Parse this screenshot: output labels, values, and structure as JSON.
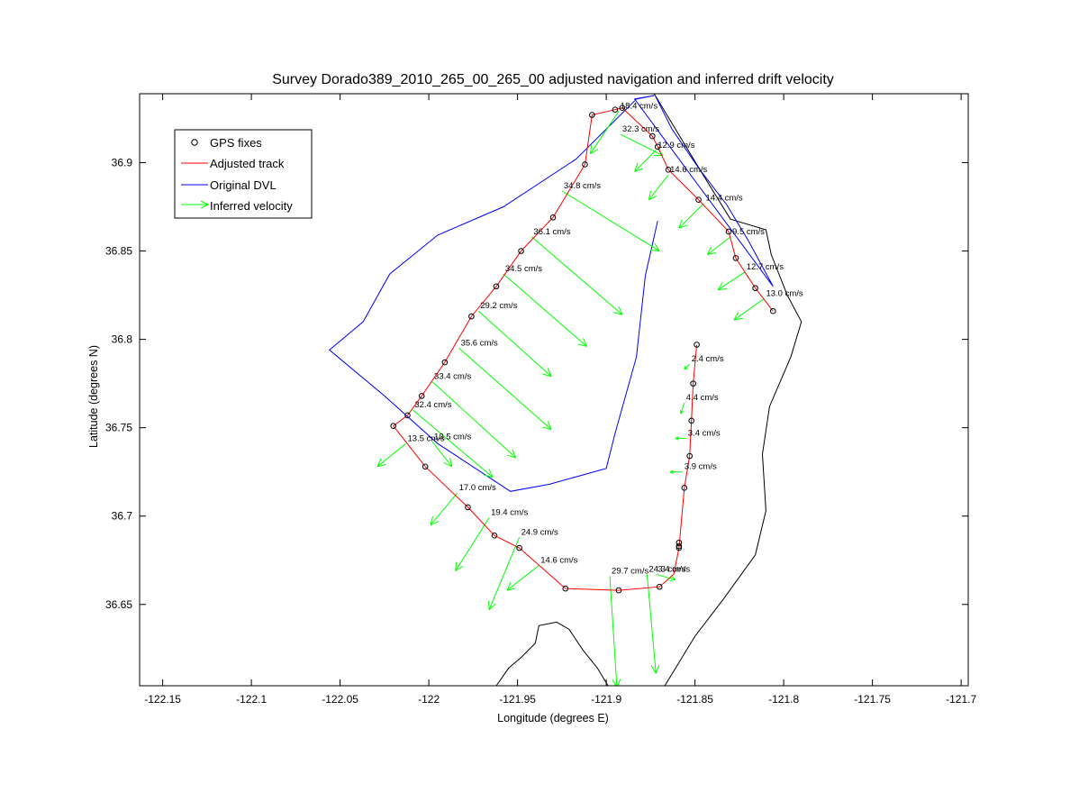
{
  "chart_data": {
    "type": "line",
    "title": "Survey Dorado389_2010_265_00_265_00 adjusted navigation and inferred drift velocity",
    "xlabel": "Longitude (degrees E)",
    "ylabel": "Latitude (degrees N)",
    "xlim": [
      -122.163,
      -121.696
    ],
    "ylim": [
      36.604,
      36.939
    ],
    "grid": false,
    "legend_position": "top-left",
    "x_ticks": [
      "-122.15",
      "-122.1",
      "-122.05",
      "-122",
      "-121.95",
      "-121.9",
      "-121.85",
      "-121.8",
      "-121.75",
      "-121.7"
    ],
    "x_tick_values": [
      -122.15,
      -122.1,
      -122.05,
      -122.0,
      -121.95,
      -121.9,
      -121.85,
      -121.8,
      -121.75,
      -121.7
    ],
    "y_ticks": [
      "36.65",
      "36.7",
      "36.75",
      "36.8",
      "36.85",
      "36.9"
    ],
    "y_tick_values": [
      36.65,
      36.7,
      36.75,
      36.8,
      36.85,
      36.9
    ],
    "legend": [
      {
        "label": "GPS fixes",
        "color": "#000000",
        "marker": "circle"
      },
      {
        "label": "Adjusted track",
        "color": "#ff0000",
        "marker": "line"
      },
      {
        "label": "Original DVL",
        "color": "#0000ff",
        "marker": "line"
      },
      {
        "label": "Inferred velocity",
        "color": "#00ff00",
        "marker": "arrow"
      }
    ],
    "colors": {
      "gps": "#000000",
      "adjusted": "#ff0000",
      "dvl": "#0000ff",
      "velocity": "#00ff00",
      "coast": "#000000"
    },
    "series": [
      {
        "name": "GPS fixes",
        "points": [
          [
            -121.895,
            36.93
          ],
          [
            -121.891,
            36.931
          ],
          [
            -121.908,
            36.927
          ],
          [
            -121.874,
            36.915
          ],
          [
            -121.871,
            36.909
          ],
          [
            -121.865,
            36.896
          ],
          [
            -121.848,
            36.879
          ],
          [
            -121.831,
            36.861
          ],
          [
            -121.827,
            36.846
          ],
          [
            -121.816,
            36.829
          ],
          [
            -121.806,
            36.816
          ],
          [
            -121.912,
            36.899
          ],
          [
            -121.93,
            36.869
          ],
          [
            -121.948,
            36.85
          ],
          [
            -121.962,
            36.83
          ],
          [
            -121.976,
            36.813
          ],
          [
            -121.991,
            36.787
          ],
          [
            -122.004,
            36.768
          ],
          [
            -122.012,
            36.757
          ],
          [
            -122.02,
            36.751
          ],
          [
            -122.002,
            36.728
          ],
          [
            -121.978,
            36.705
          ],
          [
            -121.963,
            36.689
          ],
          [
            -121.949,
            36.682
          ],
          [
            -121.923,
            36.659
          ],
          [
            -121.893,
            36.658
          ],
          [
            -121.87,
            36.66
          ],
          [
            -121.859,
            36.682
          ],
          [
            -121.859,
            36.683
          ],
          [
            -121.859,
            36.685
          ],
          [
            -121.856,
            36.716
          ],
          [
            -121.853,
            36.734
          ],
          [
            -121.852,
            36.754
          ],
          [
            -121.851,
            36.775
          ],
          [
            -121.849,
            36.797
          ]
        ]
      },
      {
        "name": "Adjusted track",
        "points": [
          [
            -121.806,
            36.816
          ],
          [
            -121.816,
            36.829
          ],
          [
            -121.827,
            36.846
          ],
          [
            -121.831,
            36.861
          ],
          [
            -121.848,
            36.879
          ],
          [
            -121.865,
            36.896
          ],
          [
            -121.871,
            36.909
          ],
          [
            -121.874,
            36.915
          ],
          [
            -121.891,
            36.931
          ],
          [
            -121.895,
            36.93
          ],
          [
            -121.908,
            36.927
          ],
          [
            -121.912,
            36.899
          ],
          [
            -121.93,
            36.869
          ],
          [
            -121.948,
            36.85
          ],
          [
            -121.962,
            36.83
          ],
          [
            -121.976,
            36.813
          ],
          [
            -121.991,
            36.787
          ],
          [
            -122.004,
            36.768
          ],
          [
            -122.012,
            36.757
          ],
          [
            -122.02,
            36.751
          ],
          [
            -122.002,
            36.728
          ],
          [
            -121.978,
            36.705
          ],
          [
            -121.963,
            36.689
          ],
          [
            -121.949,
            36.682
          ],
          [
            -121.923,
            36.659
          ],
          [
            -121.893,
            36.658
          ],
          [
            -121.87,
            36.66
          ],
          [
            -121.862,
            36.667
          ],
          [
            -121.859,
            36.682
          ],
          [
            -121.856,
            36.716
          ],
          [
            -121.853,
            36.734
          ],
          [
            -121.852,
            36.754
          ],
          [
            -121.851,
            36.775
          ],
          [
            -121.849,
            36.797
          ]
        ]
      },
      {
        "name": "Original DVL",
        "points": [
          [
            -121.872,
            36.937
          ],
          [
            -121.863,
            36.919
          ],
          [
            -121.848,
            36.897
          ],
          [
            -121.832,
            36.876
          ],
          [
            -121.82,
            36.856
          ],
          [
            -121.806,
            36.83
          ],
          [
            -121.884,
            36.936
          ],
          [
            -121.873,
            36.938
          ],
          [
            -121.883,
            36.936
          ],
          [
            -121.917,
            36.902
          ],
          [
            -121.958,
            36.875
          ],
          [
            -121.995,
            36.859
          ],
          [
            -122.022,
            36.837
          ],
          [
            -122.037,
            36.81
          ],
          [
            -122.056,
            36.794
          ],
          [
            -122.025,
            36.768
          ],
          [
            -121.995,
            36.741
          ],
          [
            -121.954,
            36.714
          ],
          [
            -121.932,
            36.718
          ],
          [
            -121.9,
            36.727
          ],
          [
            -121.895,
            36.747
          ],
          [
            -121.883,
            36.79
          ],
          [
            -121.878,
            36.836
          ],
          [
            -121.871,
            36.867
          ]
        ]
      },
      {
        "name": "Coastline",
        "points": [
          [
            -121.873,
            36.939
          ],
          [
            -121.846,
            36.894
          ],
          [
            -121.83,
            36.868
          ],
          [
            -121.81,
            36.862
          ],
          [
            -121.807,
            36.848
          ],
          [
            -121.798,
            36.825
          ],
          [
            -121.79,
            36.81
          ],
          [
            -121.796,
            36.79
          ],
          [
            -121.808,
            36.762
          ],
          [
            -121.812,
            36.735
          ],
          [
            -121.81,
            36.703
          ],
          [
            -121.816,
            36.678
          ],
          [
            -121.834,
            36.653
          ],
          [
            -121.85,
            36.632
          ],
          [
            -121.867,
            36.604
          ]
        ]
      },
      {
        "name": "Coastline south",
        "points": [
          [
            -121.962,
            36.604
          ],
          [
            -121.955,
            36.614
          ],
          [
            -121.948,
            36.62
          ],
          [
            -121.94,
            36.628
          ],
          [
            -121.938,
            36.638
          ],
          [
            -121.928,
            36.64
          ],
          [
            -121.921,
            36.636
          ],
          [
            -121.913,
            36.624
          ],
          [
            -121.905,
            36.614
          ],
          [
            -121.899,
            36.604
          ]
        ]
      }
    ],
    "velocity_vectors": [
      {
        "lon": -121.893,
        "lat": 36.929,
        "dlon": -0.016,
        "dlat": -0.024,
        "label": "18.4 cm/s"
      },
      {
        "lon": -121.892,
        "lat": 36.916,
        "dlon": 0.024,
        "dlat": -0.012,
        "label": "32.3 cm/s"
      },
      {
        "lon": -121.872,
        "lat": 36.907,
        "dlon": -0.012,
        "dlat": -0.012,
        "label": "12.9 cm/s"
      },
      {
        "lon": -121.865,
        "lat": 36.893,
        "dlon": -0.011,
        "dlat": -0.014,
        "label": "14.6 cm/s"
      },
      {
        "lon": -121.845,
        "lat": 36.877,
        "dlon": -0.014,
        "dlat": -0.014,
        "label": "14.4 cm/s"
      },
      {
        "lon": -121.83,
        "lat": 36.858,
        "dlon": -0.013,
        "dlat": -0.01,
        "label": "9.5 cm/s"
      },
      {
        "lon": -121.822,
        "lat": 36.838,
        "dlon": -0.015,
        "dlat": -0.01,
        "label": "12.7 cm/s"
      },
      {
        "lon": -121.811,
        "lat": 36.823,
        "dlon": -0.017,
        "dlat": -0.012,
        "label": "13.0 cm/s"
      },
      {
        "lon": -121.925,
        "lat": 36.884,
        "dlon": 0.055,
        "dlat": -0.034,
        "label": "34.8 cm/s"
      },
      {
        "lon": -121.942,
        "lat": 36.858,
        "dlon": 0.051,
        "dlat": -0.044,
        "label": "36.1 cm/s"
      },
      {
        "lon": -121.958,
        "lat": 36.837,
        "dlon": 0.047,
        "dlat": -0.041,
        "label": "34.5 cm/s"
      },
      {
        "lon": -121.972,
        "lat": 36.816,
        "dlon": 0.041,
        "dlat": -0.037,
        "label": "29.2 cm/s"
      },
      {
        "lon": -121.983,
        "lat": 36.795,
        "dlon": 0.052,
        "dlat": -0.046,
        "label": "35.6 cm/s"
      },
      {
        "lon": -121.998,
        "lat": 36.776,
        "dlon": 0.047,
        "dlat": -0.043,
        "label": "33.4 cm/s"
      },
      {
        "lon": -122.009,
        "lat": 36.76,
        "dlon": 0.045,
        "dlat": -0.038,
        "label": "32.4 cm/s"
      },
      {
        "lon": -122.013,
        "lat": 36.741,
        "dlon": -0.016,
        "dlat": -0.013,
        "label": "13.5 cm/s"
      },
      {
        "lon": -121.998,
        "lat": 36.742,
        "dlon": 0.011,
        "dlat": -0.014,
        "label": "13.5 cm/s"
      },
      {
        "lon": -121.984,
        "lat": 36.713,
        "dlon": -0.015,
        "dlat": -0.018,
        "label": "17.0 cm/s"
      },
      {
        "lon": -121.966,
        "lat": 36.699,
        "dlon": -0.019,
        "dlat": -0.03,
        "label": "19.4 cm/s"
      },
      {
        "lon": -121.949,
        "lat": 36.688,
        "dlon": -0.017,
        "dlat": -0.041,
        "label": "24.9 cm/s"
      },
      {
        "lon": -121.938,
        "lat": 36.672,
        "dlon": -0.018,
        "dlat": -0.014,
        "label": "14.6 cm/s"
      },
      {
        "lon": -121.898,
        "lat": 36.666,
        "dlon": 0.004,
        "dlat": -0.063,
        "label": "29.7 cm/s"
      },
      {
        "lon": -121.877,
        "lat": 36.667,
        "dlon": 0.005,
        "dlat": -0.056,
        "label": "24.3 cm/s"
      },
      {
        "lon": -121.872,
        "lat": 36.667,
        "dlon": 0.011,
        "dlat": -0.003,
        "label": "3.4 cm/s"
      },
      {
        "lon": -121.853,
        "lat": 36.786,
        "dlon": -0.003,
        "dlat": -0.003,
        "label": "2.4 cm/s"
      },
      {
        "lon": -121.856,
        "lat": 36.764,
        "dlon": -0.002,
        "dlat": -0.006,
        "label": "4.4 cm/s"
      },
      {
        "lon": -121.855,
        "lat": 36.744,
        "dlon": -0.006,
        "dlat": 0.0,
        "label": "3.4 cm/s"
      },
      {
        "lon": -121.857,
        "lat": 36.725,
        "dlon": -0.007,
        "dlat": 0.0,
        "label": "3.9 cm/s"
      }
    ]
  }
}
